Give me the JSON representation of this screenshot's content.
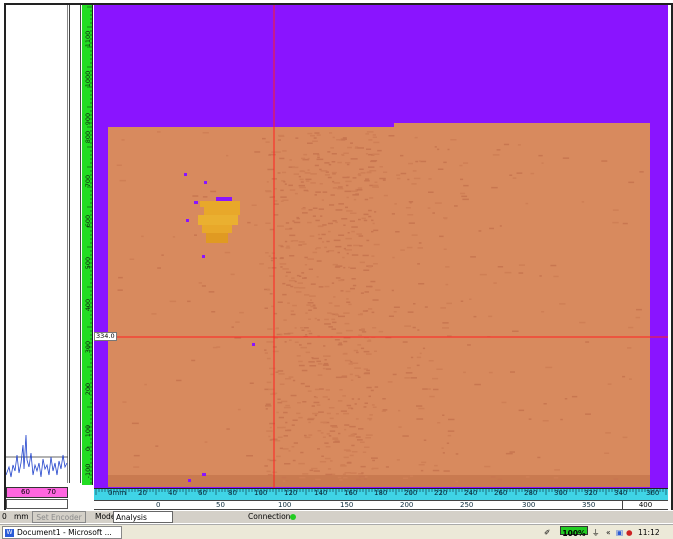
{
  "left_pane": {
    "bar_labels": [
      "60",
      "70"
    ]
  },
  "vertical_ruler": {
    "labels": [
      "1100",
      "1000",
      "900",
      "800",
      "700",
      "600",
      "500",
      "400",
      "300",
      "200",
      "100",
      "0",
      "-100"
    ],
    "unit": "0mm"
  },
  "scan": {
    "cursor_value": "334.0",
    "colors": {
      "background": "#8a14ff",
      "material": "#d88a5e",
      "defect": "#e8a82a",
      "cursor": "#ff2020"
    }
  },
  "horizontal_ruler": {
    "unit_label": "0mm",
    "labels": [
      "20",
      "40",
      "60",
      "80",
      "100",
      "120",
      "140",
      "160",
      "180",
      "200",
      "220",
      "240",
      "260",
      "280",
      "300",
      "320",
      "340",
      "360"
    ],
    "secondary_labels": [
      "0",
      "50",
      "100",
      "150",
      "200",
      "250",
      "300",
      "350"
    ],
    "secondary_end": "400"
  },
  "status_bar": {
    "left_value": "0",
    "unit": "mm",
    "encoder_button": "Set Encoder",
    "mode_label": "Mode",
    "mode_value": "Analysis",
    "connection_label": "Connection"
  },
  "taskbar": {
    "task_label": "Document1 - Microsoft ...",
    "battery": "100%",
    "clock": "11:12 AM"
  }
}
